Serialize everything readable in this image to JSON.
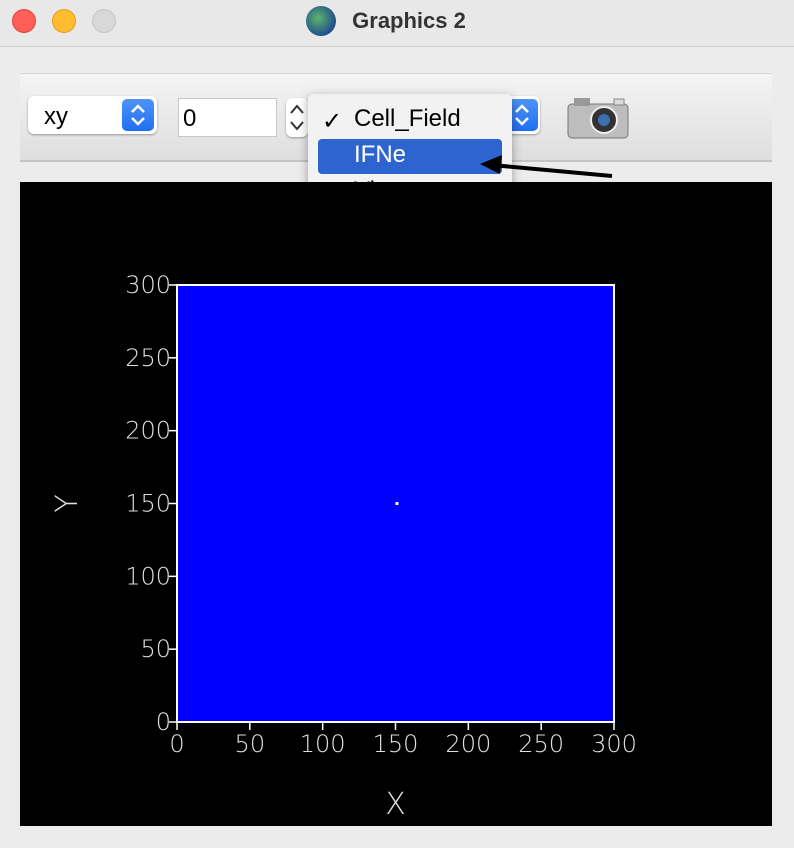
{
  "window": {
    "title": "Graphics 2"
  },
  "toolbar": {
    "plane": "xy",
    "slice": 0
  },
  "menu": {
    "items": [
      "Cell_Field",
      "IFNe",
      "Virus"
    ],
    "checked": 0,
    "highlighted": 1
  },
  "plot": {
    "x_label": "X",
    "y_label": "Y",
    "xlim": [
      0,
      300
    ],
    "ylim": [
      0,
      300
    ],
    "xticks": [
      0,
      50,
      100,
      150,
      200,
      250,
      300
    ],
    "yticks": [
      0,
      50,
      100,
      150,
      200,
      250,
      300
    ],
    "field_color": "#0000ff",
    "points": {
      "x": [
        151
      ],
      "y": [
        150
      ]
    }
  }
}
